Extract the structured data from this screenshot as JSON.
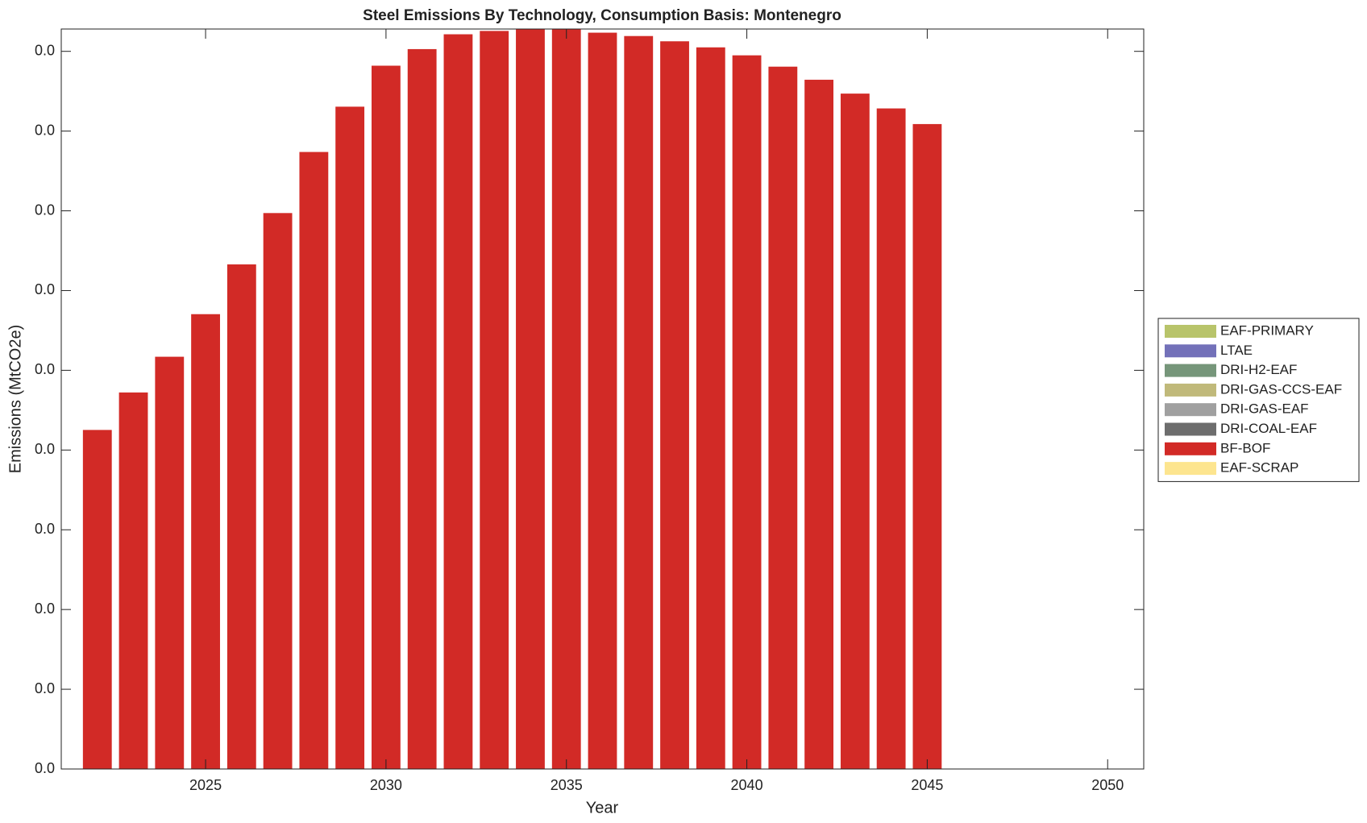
{
  "chart_data": {
    "type": "stacked_bar",
    "title": "Steel Emissions By Technology, Consumption Basis: Montenegro",
    "x_label": "Year",
    "y_label": "Emissions (MtCO2e)",
    "x": [
      2022,
      2023,
      2024,
      2025,
      2026,
      2027,
      2028,
      2029,
      2030,
      2031,
      2032,
      2033,
      2034,
      2035,
      2036,
      2037,
      2038,
      2039,
      2040,
      2041,
      2042,
      2043,
      2044,
      2045
    ],
    "xlim": [
      2021,
      2051
    ],
    "xticks": [
      2025,
      2030,
      2035,
      2040,
      2045,
      2050
    ],
    "ylim": [
      0,
      0.0464
    ],
    "yticks": [
      {
        "value": 0,
        "label": "0.0"
      },
      {
        "value": 0.005,
        "label": "0.0"
      },
      {
        "value": 0.01,
        "label": "0.0"
      },
      {
        "value": 0.015,
        "label": "0.0"
      },
      {
        "value": 0.02,
        "label": "0.0"
      },
      {
        "value": 0.025,
        "label": "0.0"
      },
      {
        "value": 0.03,
        "label": "0.0"
      },
      {
        "value": 0.035,
        "label": "0.0"
      },
      {
        "value": 0.04,
        "label": "0.0"
      },
      {
        "value": 0.045,
        "label": "0.0"
      }
    ],
    "legend": "outside-right",
    "series": [
      {
        "name": "EAF-PRIMARY",
        "color": "#b8c46a",
        "values": [
          0,
          0,
          0,
          0,
          0,
          0,
          0,
          0,
          0,
          0,
          0,
          0,
          0,
          0,
          0,
          0,
          0,
          0,
          0,
          0,
          0,
          0,
          0,
          0
        ]
      },
      {
        "name": "LTAE",
        "color": "#7371b9",
        "values": [
          0,
          0,
          0,
          0,
          0,
          0,
          0,
          0,
          0,
          0,
          0,
          0,
          0,
          0,
          0,
          0,
          0,
          0,
          0,
          0,
          0,
          0,
          0,
          0
        ]
      },
      {
        "name": "DRI-H2-EAF",
        "color": "#76967a",
        "values": [
          0,
          0,
          0,
          0,
          0,
          0,
          0,
          0,
          0,
          0,
          0,
          0,
          0,
          0,
          0,
          0,
          0,
          0,
          0,
          0,
          0,
          0,
          0,
          0
        ]
      },
      {
        "name": "DRI-GAS-CCS-EAF",
        "color": "#c0b97a",
        "values": [
          0,
          0,
          0,
          0,
          0,
          0,
          0,
          0,
          0,
          0,
          0,
          0,
          0,
          0,
          0,
          0,
          0,
          0,
          0,
          0,
          0,
          0,
          0,
          0
        ]
      },
      {
        "name": "DRI-GAS-EAF",
        "color": "#a0a0a0",
        "values": [
          0,
          0,
          0,
          0,
          0,
          0,
          0,
          0,
          0,
          0,
          0,
          0,
          0,
          0,
          0,
          0,
          0,
          0,
          0,
          0,
          0,
          0,
          0,
          0
        ]
      },
      {
        "name": "DRI-COAL-EAF",
        "color": "#6d6d6d",
        "values": [
          0,
          0,
          0,
          0,
          0,
          0,
          0,
          0,
          0,
          0,
          0,
          0,
          0,
          0,
          0,
          0,
          0,
          0,
          0,
          0,
          0,
          0,
          0,
          0
        ]
      },
      {
        "name": "BF-BOF",
        "color": "#d22a26",
        "values": [
          0.02126,
          0.02361,
          0.02585,
          0.02852,
          0.03164,
          0.03486,
          0.03869,
          0.04153,
          0.0441,
          0.04514,
          0.04607,
          0.04628,
          0.04639,
          0.04639,
          0.04617,
          0.04596,
          0.04563,
          0.04525,
          0.04475,
          0.04404,
          0.04322,
          0.04235,
          0.04142,
          0.04044
        ]
      },
      {
        "name": "EAF-SCRAP",
        "color": "#fde58f",
        "values": [
          0,
          0,
          0,
          0,
          0,
          0,
          0,
          0,
          0,
          0,
          0,
          0,
          0,
          0,
          0,
          0,
          0,
          0,
          0,
          0,
          0,
          0,
          0,
          0
        ]
      }
    ]
  }
}
